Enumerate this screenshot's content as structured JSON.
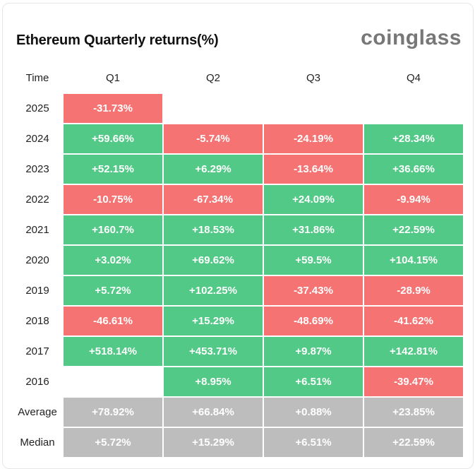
{
  "header": {
    "title": "Ethereum Quarterly returns(%)",
    "brand": "coinglass"
  },
  "colors": {
    "positive": "#52c986",
    "negative": "#f57373",
    "summary": "#bdbdbd"
  },
  "chart_data": {
    "type": "table",
    "title": "Ethereum Quarterly returns(%)",
    "corner_label": "Time",
    "columns": [
      "Q1",
      "Q2",
      "Q3",
      "Q4"
    ],
    "rows": [
      {
        "label": "2025",
        "values": [
          "-31.73%",
          "",
          "",
          ""
        ]
      },
      {
        "label": "2024",
        "values": [
          "+59.66%",
          "-5.74%",
          "-24.19%",
          "+28.34%"
        ]
      },
      {
        "label": "2023",
        "values": [
          "+52.15%",
          "+6.29%",
          "-13.64%",
          "+36.66%"
        ]
      },
      {
        "label": "2022",
        "values": [
          "-10.75%",
          "-67.34%",
          "+24.09%",
          "-9.94%"
        ]
      },
      {
        "label": "2021",
        "values": [
          "+160.7%",
          "+18.53%",
          "+31.86%",
          "+22.59%"
        ]
      },
      {
        "label": "2020",
        "values": [
          "+3.02%",
          "+69.62%",
          "+59.5%",
          "+104.15%"
        ]
      },
      {
        "label": "2019",
        "values": [
          "+5.72%",
          "+102.25%",
          "-37.43%",
          "-28.9%"
        ]
      },
      {
        "label": "2018",
        "values": [
          "-46.61%",
          "+15.29%",
          "-48.69%",
          "-41.62%"
        ]
      },
      {
        "label": "2017",
        "values": [
          "+518.14%",
          "+453.71%",
          "+9.87%",
          "+142.81%"
        ]
      },
      {
        "label": "2016",
        "values": [
          "",
          "+8.95%",
          "+6.51%",
          "-39.47%"
        ]
      }
    ],
    "summary_rows": [
      {
        "label": "Average",
        "values": [
          "+78.92%",
          "+66.84%",
          "+0.88%",
          "+23.85%"
        ]
      },
      {
        "label": "Median",
        "values": [
          "+5.72%",
          "+15.29%",
          "+6.51%",
          "+22.59%"
        ]
      }
    ]
  }
}
